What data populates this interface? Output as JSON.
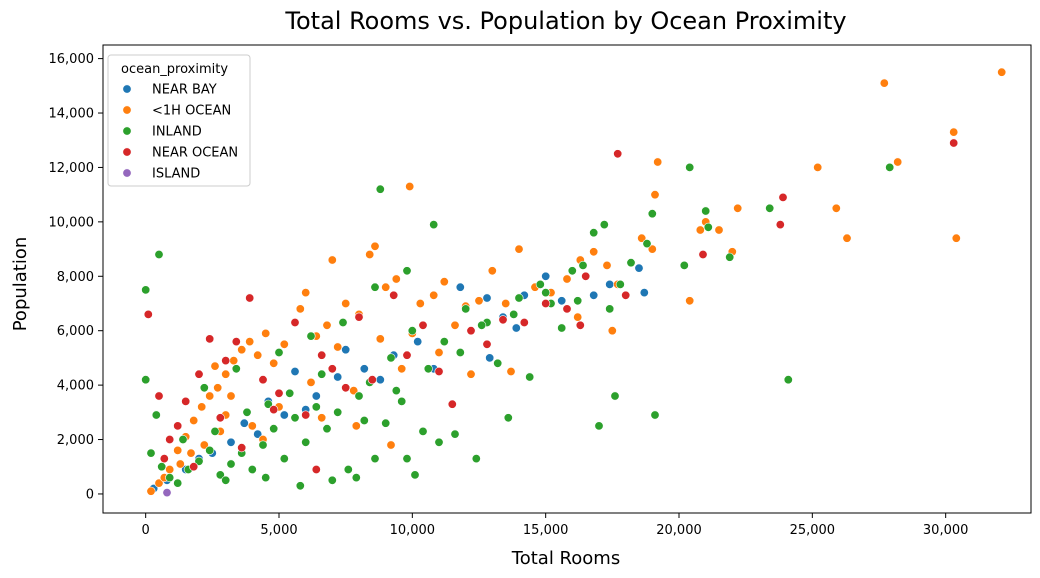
{
  "chart_data": {
    "type": "scatter",
    "title": "Total Rooms vs. Population by Ocean Proximity",
    "xlabel": "Total Rooms",
    "ylabel": "Population",
    "xlim": [
      -1600,
      33200
    ],
    "ylim": [
      -700,
      16500
    ],
    "xticks": [
      0,
      5000,
      10000,
      15000,
      20000,
      25000,
      30000
    ],
    "xtick_labels": [
      "0",
      "5,000",
      "10,000",
      "15,000",
      "20,000",
      "25,000",
      "30,000"
    ],
    "yticks": [
      0,
      2000,
      4000,
      6000,
      8000,
      10000,
      12000,
      14000,
      16000
    ],
    "ytick_labels": [
      "0",
      "2,000",
      "4,000",
      "6,000",
      "8,000",
      "10,000",
      "12,000",
      "14,000",
      "16,000"
    ],
    "grid": false,
    "legend": {
      "title": "ocean_proximity",
      "position": "top-left"
    },
    "series": [
      {
        "name": "NEAR BAY",
        "color": "#1f77b4",
        "points": [
          [
            300,
            200
          ],
          [
            800,
            500
          ],
          [
            1500,
            900
          ],
          [
            2500,
            1500
          ],
          [
            3200,
            1900
          ],
          [
            4200,
            2200
          ],
          [
            5200,
            2900
          ],
          [
            6400,
            3600
          ],
          [
            7200,
            4300
          ],
          [
            8200,
            4600
          ],
          [
            9300,
            5100
          ],
          [
            10200,
            5600
          ],
          [
            11800,
            7600
          ],
          [
            12800,
            7200
          ],
          [
            13400,
            6500
          ],
          [
            14200,
            7300
          ],
          [
            15000,
            8000
          ],
          [
            15600,
            7100
          ],
          [
            16800,
            7300
          ],
          [
            17400,
            7700
          ],
          [
            18500,
            8300
          ],
          [
            18700,
            7400
          ],
          [
            2000,
            1300
          ],
          [
            3700,
            2600
          ],
          [
            6000,
            3100
          ],
          [
            7500,
            5300
          ],
          [
            10800,
            4600
          ],
          [
            12900,
            5000
          ],
          [
            4600,
            3400
          ],
          [
            5600,
            4500
          ],
          [
            8800,
            4200
          ],
          [
            13900,
            6100
          ]
        ]
      },
      {
        "name": "<1H OCEAN",
        "color": "#ff7f0e",
        "points": [
          [
            200,
            100
          ],
          [
            500,
            400
          ],
          [
            900,
            900
          ],
          [
            1200,
            1600
          ],
          [
            1500,
            2100
          ],
          [
            1800,
            2700
          ],
          [
            2100,
            3200
          ],
          [
            2400,
            3600
          ],
          [
            2700,
            3900
          ],
          [
            3000,
            4400
          ],
          [
            3300,
            4900
          ],
          [
            3600,
            5300
          ],
          [
            3900,
            5600
          ],
          [
            4200,
            5100
          ],
          [
            4500,
            5900
          ],
          [
            4800,
            4800
          ],
          [
            5200,
            5500
          ],
          [
            5600,
            6300
          ],
          [
            6000,
            7400
          ],
          [
            6400,
            5800
          ],
          [
            6800,
            6200
          ],
          [
            7200,
            5400
          ],
          [
            7500,
            7000
          ],
          [
            8000,
            6600
          ],
          [
            8400,
            8800
          ],
          [
            8600,
            9100
          ],
          [
            9000,
            7600
          ],
          [
            9400,
            7900
          ],
          [
            9900,
            11300
          ],
          [
            10300,
            7000
          ],
          [
            10800,
            7300
          ],
          [
            11200,
            7800
          ],
          [
            11600,
            6200
          ],
          [
            12000,
            6900
          ],
          [
            12500,
            7100
          ],
          [
            13000,
            8200
          ],
          [
            13500,
            7000
          ],
          [
            14000,
            9000
          ],
          [
            14600,
            7600
          ],
          [
            15200,
            7400
          ],
          [
            15800,
            7900
          ],
          [
            16300,
            8600
          ],
          [
            16800,
            8900
          ],
          [
            17300,
            8400
          ],
          [
            17500,
            6000
          ],
          [
            18000,
            7300
          ],
          [
            18600,
            9400
          ],
          [
            19000,
            9000
          ],
          [
            19100,
            11000
          ],
          [
            19200,
            12200
          ],
          [
            20400,
            7100
          ],
          [
            20800,
            9700
          ],
          [
            21000,
            10000
          ],
          [
            21500,
            9700
          ],
          [
            22000,
            8900
          ],
          [
            22200,
            10500
          ],
          [
            25200,
            12000
          ],
          [
            25900,
            10500
          ],
          [
            26300,
            9400
          ],
          [
            27700,
            15100
          ],
          [
            28200,
            12200
          ],
          [
            30300,
            13300
          ],
          [
            30400,
            9400
          ],
          [
            32100,
            15500
          ],
          [
            7000,
            8600
          ],
          [
            11000,
            5200
          ],
          [
            12200,
            4400
          ],
          [
            9600,
            4600
          ],
          [
            5000,
            3200
          ],
          [
            4000,
            2500
          ],
          [
            3000,
            2900
          ],
          [
            2200,
            1800
          ],
          [
            1300,
            1100
          ],
          [
            700,
            600
          ],
          [
            6200,
            4100
          ],
          [
            7800,
            3800
          ],
          [
            8800,
            5700
          ],
          [
            10000,
            5900
          ],
          [
            13700,
            4500
          ],
          [
            16200,
            6500
          ],
          [
            17700,
            7700
          ],
          [
            2600,
            4700
          ],
          [
            3200,
            3600
          ],
          [
            5800,
            6800
          ],
          [
            6600,
            2800
          ],
          [
            7900,
            2500
          ],
          [
            9200,
            1800
          ],
          [
            4400,
            2000
          ],
          [
            2800,
            2300
          ],
          [
            1700,
            1500
          ]
        ]
      },
      {
        "name": "INLAND",
        "color": "#2ca02c",
        "points": [
          [
            0,
            7500
          ],
          [
            0,
            4200
          ],
          [
            500,
            8800
          ],
          [
            400,
            2900
          ],
          [
            200,
            1500
          ],
          [
            600,
            1000
          ],
          [
            900,
            600
          ],
          [
            1200,
            400
          ],
          [
            1600,
            900
          ],
          [
            2000,
            1200
          ],
          [
            2400,
            1600
          ],
          [
            2800,
            700
          ],
          [
            3200,
            1100
          ],
          [
            3600,
            1500
          ],
          [
            4000,
            900
          ],
          [
            4400,
            1800
          ],
          [
            4800,
            2400
          ],
          [
            5200,
            1300
          ],
          [
            5600,
            2800
          ],
          [
            6000,
            1900
          ],
          [
            6400,
            3200
          ],
          [
            6800,
            2400
          ],
          [
            7200,
            3000
          ],
          [
            7600,
            900
          ],
          [
            8000,
            3600
          ],
          [
            8400,
            4100
          ],
          [
            8800,
            11200
          ],
          [
            9200,
            5000
          ],
          [
            9600,
            3400
          ],
          [
            10000,
            6000
          ],
          [
            10400,
            2300
          ],
          [
            10800,
            9900
          ],
          [
            11200,
            5600
          ],
          [
            11600,
            2200
          ],
          [
            12000,
            6800
          ],
          [
            12400,
            1300
          ],
          [
            12800,
            6300
          ],
          [
            13200,
            4800
          ],
          [
            13600,
            2800
          ],
          [
            14000,
            7200
          ],
          [
            14400,
            4300
          ],
          [
            14800,
            7700
          ],
          [
            15200,
            7000
          ],
          [
            15600,
            6100
          ],
          [
            16000,
            8200
          ],
          [
            16400,
            8400
          ],
          [
            16800,
            9600
          ],
          [
            17200,
            9900
          ],
          [
            17400,
            6800
          ],
          [
            17600,
            3600
          ],
          [
            17800,
            7700
          ],
          [
            17000,
            2500
          ],
          [
            18200,
            8500
          ],
          [
            18800,
            9200
          ],
          [
            19000,
            10300
          ],
          [
            19100,
            2900
          ],
          [
            20200,
            8400
          ],
          [
            20400,
            12000
          ],
          [
            21000,
            10400
          ],
          [
            21100,
            9800
          ],
          [
            21900,
            8700
          ],
          [
            23400,
            10500
          ],
          [
            24100,
            4200
          ],
          [
            27900,
            12000
          ],
          [
            7900,
            600
          ],
          [
            8600,
            1300
          ],
          [
            10100,
            700
          ],
          [
            9800,
            1300
          ],
          [
            11000,
            1900
          ],
          [
            9000,
            2600
          ],
          [
            6600,
            4400
          ],
          [
            5400,
            3700
          ],
          [
            3800,
            3000
          ],
          [
            2600,
            2300
          ],
          [
            1400,
            2000
          ],
          [
            3000,
            500
          ],
          [
            4500,
            600
          ],
          [
            5800,
            300
          ],
          [
            7000,
            500
          ],
          [
            8200,
            2700
          ],
          [
            9400,
            3800
          ],
          [
            10600,
            4600
          ],
          [
            11800,
            5200
          ],
          [
            12600,
            6200
          ],
          [
            13800,
            6600
          ],
          [
            15000,
            7400
          ],
          [
            16200,
            7100
          ],
          [
            2200,
            3900
          ],
          [
            3400,
            4600
          ],
          [
            4600,
            3300
          ],
          [
            5000,
            5200
          ],
          [
            6200,
            5800
          ],
          [
            7400,
            6300
          ],
          [
            8600,
            7600
          ],
          [
            9800,
            8200
          ]
        ]
      },
      {
        "name": "NEAR OCEAN",
        "color": "#d62728",
        "points": [
          [
            100,
            6600
          ],
          [
            500,
            3600
          ],
          [
            700,
            1300
          ],
          [
            1200,
            2500
          ],
          [
            1500,
            3400
          ],
          [
            2000,
            4400
          ],
          [
            2400,
            5700
          ],
          [
            3000,
            4900
          ],
          [
            3400,
            5600
          ],
          [
            3900,
            7200
          ],
          [
            4400,
            4200
          ],
          [
            5000,
            3700
          ],
          [
            5600,
            6300
          ],
          [
            6000,
            2900
          ],
          [
            6600,
            5100
          ],
          [
            7000,
            4600
          ],
          [
            7500,
            3900
          ],
          [
            8000,
            6500
          ],
          [
            8500,
            4200
          ],
          [
            9300,
            7300
          ],
          [
            9800,
            5100
          ],
          [
            10400,
            6200
          ],
          [
            11000,
            4500
          ],
          [
            11500,
            3300
          ],
          [
            12200,
            6000
          ],
          [
            12800,
            5500
          ],
          [
            13400,
            6400
          ],
          [
            14200,
            6300
          ],
          [
            15000,
            7000
          ],
          [
            15800,
            6800
          ],
          [
            16300,
            6200
          ],
          [
            16500,
            8000
          ],
          [
            17700,
            12500
          ],
          [
            18000,
            7300
          ],
          [
            20900,
            8800
          ],
          [
            23800,
            9900
          ],
          [
            23900,
            10900
          ],
          [
            30300,
            12900
          ],
          [
            2800,
            2800
          ],
          [
            4800,
            3100
          ],
          [
            6400,
            900
          ],
          [
            3600,
            1700
          ],
          [
            1800,
            1000
          ],
          [
            900,
            2000
          ]
        ]
      },
      {
        "name": "ISLAND",
        "color": "#9467bd",
        "points": [
          [
            800,
            50
          ]
        ]
      }
    ]
  }
}
